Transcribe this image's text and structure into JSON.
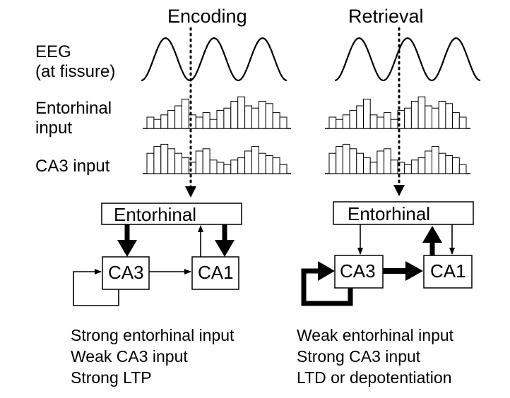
{
  "phases": [
    {
      "id": "encoding",
      "title": "Encoding",
      "entorhinal_label": "Entorhinal",
      "ca3_label": "CA3",
      "ca1_label": "CA1",
      "summary": [
        "Strong entorhinal input",
        "Weak CA3 input",
        "Strong LTP"
      ],
      "entorhinal_input_bars": [
        5,
        4,
        6,
        8,
        10,
        13,
        6,
        5,
        7,
        4,
        8,
        9,
        12,
        14,
        10,
        9,
        12,
        11,
        7,
        5
      ],
      "ca3_input_bars": [
        9,
        12,
        13,
        11,
        9,
        7,
        5,
        10,
        11,
        6,
        5,
        4,
        6,
        7,
        10,
        12,
        9,
        8,
        7,
        4
      ]
    },
    {
      "id": "retrieval",
      "title": "Retrieval",
      "entorhinal_label": "Entorhinal",
      "ca3_label": "CA3",
      "ca1_label": "CA1",
      "summary": [
        "Weak entorhinal input",
        "Strong CA3 input",
        "LTD or depotentiation"
      ],
      "entorhinal_input_bars": [
        5,
        4,
        6,
        8,
        10,
        13,
        6,
        5,
        7,
        4,
        8,
        9,
        12,
        14,
        10,
        9,
        12,
        11,
        7,
        5
      ],
      "ca3_input_bars": [
        9,
        12,
        13,
        11,
        9,
        7,
        5,
        10,
        11,
        6,
        5,
        4,
        6,
        7,
        10,
        12,
        9,
        8,
        7,
        4
      ]
    }
  ],
  "row_labels": {
    "eeg": [
      "EEG",
      "(at fissure)"
    ],
    "entorhinal_input": [
      "Entorhinal",
      "input"
    ],
    "ca3_input": [
      "CA3 input"
    ]
  },
  "colors": {
    "ink": "#000000",
    "background": "#ffffff"
  }
}
